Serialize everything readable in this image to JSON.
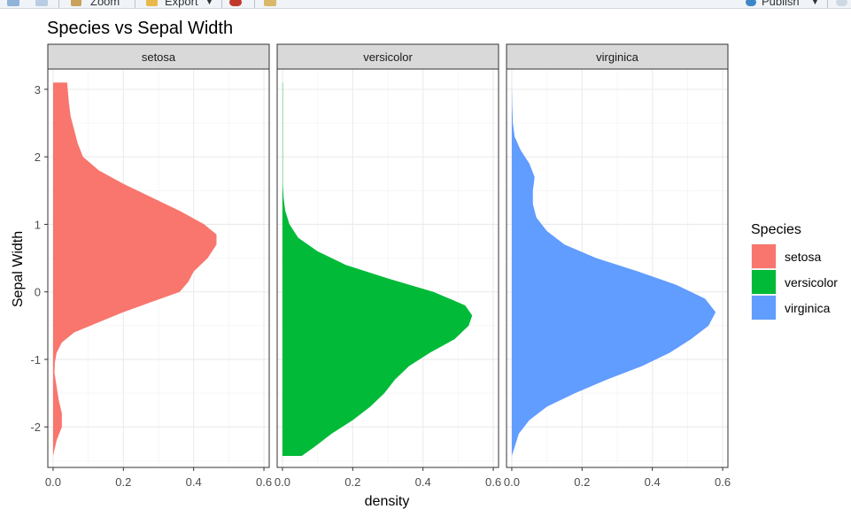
{
  "toolbar": {
    "zoom_label": "Zoom",
    "export_label": "Export",
    "publish_label": "Publish",
    "colors": {
      "background": "#f0f4f8",
      "border": "#d2d8df"
    }
  },
  "chart_data": {
    "type": "area",
    "title": "Species vs Sepal Width",
    "xlabel": "density",
    "ylabel": "Sepal Width",
    "facets": [
      "setosa",
      "versicolor",
      "virginica"
    ],
    "xlim": [
      -0.015,
      0.615
    ],
    "ylim": [
      -2.6,
      3.3
    ],
    "x_ticks": [
      0.0,
      0.2,
      0.4,
      0.6
    ],
    "x_tick_labels": [
      "0.0",
      "0.2",
      "0.4",
      "0.6"
    ],
    "y_ticks": [
      -2,
      -1,
      0,
      1,
      2,
      3
    ],
    "y_tick_labels": [
      "-2",
      "-1",
      "0",
      "1",
      "2",
      "3"
    ],
    "grid": true,
    "legend": {
      "title": "Species",
      "position": "right"
    },
    "series": [
      {
        "name": "setosa",
        "color": "#F8766D",
        "points": [
          {
            "y": -2.43,
            "density": 0.0
          },
          {
            "y": -2.2,
            "density": 0.01
          },
          {
            "y": -2.0,
            "density": 0.025
          },
          {
            "y": -1.8,
            "density": 0.025
          },
          {
            "y": -1.6,
            "density": 0.016
          },
          {
            "y": -1.4,
            "density": 0.01
          },
          {
            "y": -1.2,
            "density": 0.004
          },
          {
            "y": -1.05,
            "density": 0.005
          },
          {
            "y": -0.9,
            "density": 0.01
          },
          {
            "y": -0.75,
            "density": 0.025
          },
          {
            "y": -0.6,
            "density": 0.06
          },
          {
            "y": -0.45,
            "density": 0.13
          },
          {
            "y": -0.3,
            "density": 0.2
          },
          {
            "y": -0.15,
            "density": 0.28
          },
          {
            "y": 0.0,
            "density": 0.36
          },
          {
            "y": 0.15,
            "density": 0.385
          },
          {
            "y": 0.3,
            "density": 0.4
          },
          {
            "y": 0.5,
            "density": 0.44
          },
          {
            "y": 0.7,
            "density": 0.465
          },
          {
            "y": 0.85,
            "density": 0.465
          },
          {
            "y": 1.0,
            "density": 0.43
          },
          {
            "y": 1.2,
            "density": 0.36
          },
          {
            "y": 1.4,
            "density": 0.28
          },
          {
            "y": 1.6,
            "density": 0.2
          },
          {
            "y": 1.8,
            "density": 0.13
          },
          {
            "y": 2.0,
            "density": 0.085
          },
          {
            "y": 2.2,
            "density": 0.07
          },
          {
            "y": 2.4,
            "density": 0.06
          },
          {
            "y": 2.6,
            "density": 0.05
          },
          {
            "y": 2.8,
            "density": 0.045
          },
          {
            "y": 3.1,
            "density": 0.04
          }
        ]
      },
      {
        "name": "versicolor",
        "color": "#00BA38",
        "points": [
          {
            "y": -2.43,
            "density": 0.055
          },
          {
            "y": -2.3,
            "density": 0.09
          },
          {
            "y": -2.1,
            "density": 0.14
          },
          {
            "y": -1.9,
            "density": 0.2
          },
          {
            "y": -1.7,
            "density": 0.25
          },
          {
            "y": -1.5,
            "density": 0.29
          },
          {
            "y": -1.3,
            "density": 0.32
          },
          {
            "y": -1.1,
            "density": 0.36
          },
          {
            "y": -0.9,
            "density": 0.42
          },
          {
            "y": -0.7,
            "density": 0.49
          },
          {
            "y": -0.5,
            "density": 0.53
          },
          {
            "y": -0.35,
            "density": 0.54
          },
          {
            "y": -0.2,
            "density": 0.52
          },
          {
            "y": 0.0,
            "density": 0.43
          },
          {
            "y": 0.2,
            "density": 0.3
          },
          {
            "y": 0.4,
            "density": 0.18
          },
          {
            "y": 0.6,
            "density": 0.1
          },
          {
            "y": 0.8,
            "density": 0.045
          },
          {
            "y": 1.0,
            "density": 0.02
          },
          {
            "y": 1.2,
            "density": 0.008
          },
          {
            "y": 1.4,
            "density": 0.003
          },
          {
            "y": 1.6,
            "density": 0.001
          },
          {
            "y": 2.0,
            "density": 0.001
          },
          {
            "y": 2.5,
            "density": 0.001
          },
          {
            "y": 3.1,
            "density": 0.001
          }
        ]
      },
      {
        "name": "virginica",
        "color": "#619CFF",
        "points": [
          {
            "y": -2.43,
            "density": 0.0
          },
          {
            "y": -2.3,
            "density": 0.008
          },
          {
            "y": -2.1,
            "density": 0.02
          },
          {
            "y": -1.9,
            "density": 0.05
          },
          {
            "y": -1.7,
            "density": 0.1
          },
          {
            "y": -1.5,
            "density": 0.18
          },
          {
            "y": -1.3,
            "density": 0.27
          },
          {
            "y": -1.1,
            "density": 0.37
          },
          {
            "y": -0.9,
            "density": 0.45
          },
          {
            "y": -0.7,
            "density": 0.51
          },
          {
            "y": -0.5,
            "density": 0.56
          },
          {
            "y": -0.3,
            "density": 0.58
          },
          {
            "y": -0.1,
            "density": 0.55
          },
          {
            "y": 0.1,
            "density": 0.47
          },
          {
            "y": 0.3,
            "density": 0.36
          },
          {
            "y": 0.5,
            "density": 0.24
          },
          {
            "y": 0.7,
            "density": 0.15
          },
          {
            "y": 0.9,
            "density": 0.1
          },
          {
            "y": 1.1,
            "density": 0.07
          },
          {
            "y": 1.3,
            "density": 0.06
          },
          {
            "y": 1.5,
            "density": 0.06
          },
          {
            "y": 1.7,
            "density": 0.065
          },
          {
            "y": 1.9,
            "density": 0.05
          },
          {
            "y": 2.1,
            "density": 0.025
          },
          {
            "y": 2.3,
            "density": 0.008
          },
          {
            "y": 2.5,
            "density": 0.003
          },
          {
            "y": 2.8,
            "density": 0.001
          },
          {
            "y": 3.1,
            "density": 0.0
          }
        ]
      }
    ]
  }
}
